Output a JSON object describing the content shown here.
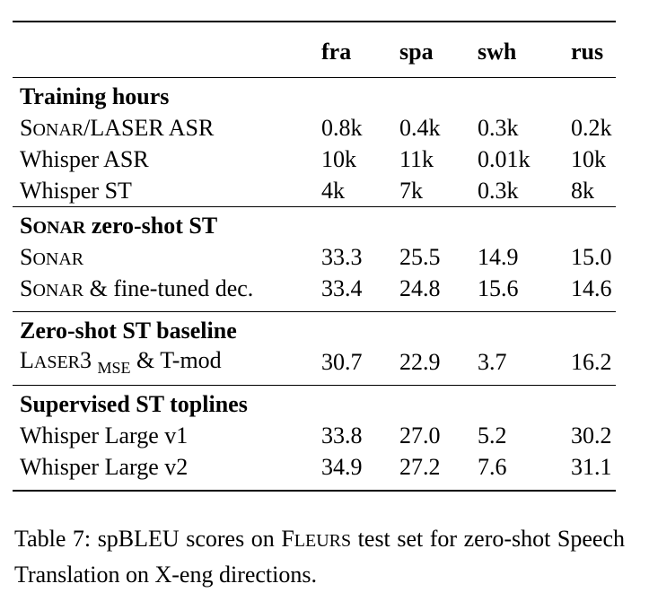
{
  "table": {
    "columns": [
      "fra",
      "spa",
      "swh",
      "rus"
    ],
    "sections": [
      {
        "title": "Training hours",
        "rows": [
          {
            "label": "SONAR/LASER ASR",
            "values": [
              "0.8k",
              "0.4k",
              "0.3k",
              "0.2k"
            ]
          },
          {
            "label": "Whisper ASR",
            "values": [
              "10k",
              "11k",
              "0.01k",
              "10k"
            ]
          },
          {
            "label": "Whisper ST",
            "values": [
              "4k",
              "7k",
              "0.3k",
              "8k"
            ]
          }
        ]
      },
      {
        "title": "SONAR zero-shot ST",
        "rows": [
          {
            "label": "SONAR",
            "values": [
              "33.3",
              "25.5",
              "14.9",
              "15.0"
            ]
          },
          {
            "label": "SONAR & fine-tuned dec.",
            "values": [
              "33.4",
              "24.8",
              "15.6",
              "14.6"
            ]
          }
        ]
      },
      {
        "title": "Zero-shot ST baseline",
        "rows": [
          {
            "label": "LASER3 MSE & T-mod",
            "values": [
              "30.7",
              "22.9",
              "3.7",
              "16.2"
            ]
          }
        ]
      },
      {
        "title": "Supervised ST toplines",
        "rows": [
          {
            "label": "Whisper Large v1",
            "values": [
              "33.8",
              "27.0",
              "5.2",
              "30.2"
            ]
          },
          {
            "label": "Whisper Large v2",
            "values": [
              "34.9",
              "27.2",
              "7.6",
              "31.1"
            ]
          }
        ]
      }
    ]
  },
  "caption": "Table 7: spBLEU scores on FLEURS test set for zero-shot Speech Translation on X-eng directions."
}
